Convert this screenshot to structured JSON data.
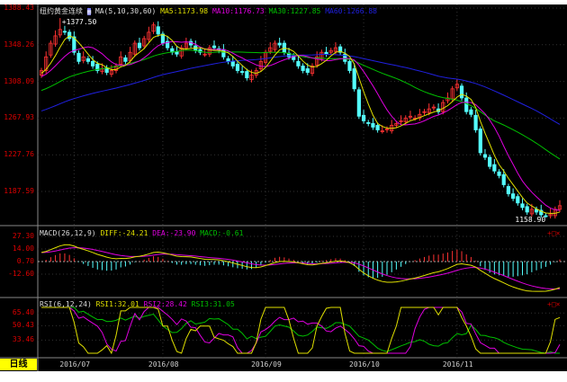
{
  "header": {
    "symbol": "纽约黄金连续",
    "ma_label": "MA(5,10,30,60)",
    "ma5": "MA5:1173.98",
    "ma10": "MA10:1176.73",
    "ma30": "MA30:1227.85",
    "ma60": "MA60:1266.88"
  },
  "macd": {
    "label": "MACD(26,12,9)",
    "diff": "DIFF:-24.21",
    "dea": "DEA:-23.90",
    "macd": "MACD:-0.61"
  },
  "rsi": {
    "label": "RSI(6,12,24)",
    "rsi1": "RSI1:32.01",
    "rsi2": "RSI2:28.42",
    "rsi3": "RSI3:31.05"
  },
  "period": "日线",
  "controls": "+□×",
  "colors": {
    "up": "#ff3232",
    "down": "#54ffff",
    "ma5": "#e0e000",
    "ma10": "#e000e0",
    "ma30": "#00c000",
    "ma60": "#2020e0",
    "axis": "#e00000"
  },
  "chart_data": {
    "type": "candlestick",
    "price_axis": {
      "ticks": [
        "1388.43",
        "1348.26",
        "1308.09",
        "1267.93",
        "1227.76",
        "1187.59"
      ],
      "range": [
        1187.59,
        1388.43
      ]
    },
    "macd_axis": {
      "ticks": [
        "27.30",
        "14.00",
        "0.70",
        "-12.60"
      ]
    },
    "rsi_axis": {
      "ticks": [
        "65.40",
        "50.43",
        "33.46"
      ]
    },
    "x_ticks": [
      "2016/07",
      "2016/08",
      "2016/09",
      "2016/10",
      "2016/11"
    ],
    "annotations": {
      "high": "1377.50",
      "low": "1158.90"
    },
    "closes": [
      1320,
      1335,
      1350,
      1358,
      1365,
      1362,
      1355,
      1340,
      1330,
      1335,
      1330,
      1325,
      1320,
      1322,
      1318,
      1320,
      1325,
      1335,
      1330,
      1340,
      1350,
      1345,
      1355,
      1362,
      1370,
      1360,
      1350,
      1345,
      1340,
      1338,
      1345,
      1350,
      1348,
      1342,
      1340,
      1338,
      1345,
      1345,
      1342,
      1335,
      1330,
      1325,
      1320,
      1318,
      1312,
      1315,
      1320,
      1330,
      1340,
      1345,
      1350,
      1348,
      1340,
      1335,
      1332,
      1325,
      1320,
      1318,
      1325,
      1335,
      1340,
      1338,
      1342,
      1345,
      1340,
      1330,
      1320,
      1300,
      1270,
      1265,
      1262,
      1258,
      1255,
      1254,
      1256,
      1260,
      1262,
      1265,
      1268,
      1270,
      1268,
      1272,
      1275,
      1278,
      1280,
      1275,
      1285,
      1290,
      1300,
      1305,
      1290,
      1275,
      1272,
      1255,
      1230,
      1225,
      1215,
      1210,
      1205,
      1195,
      1185,
      1180,
      1175,
      1170,
      1165,
      1168,
      1165,
      1162,
      1160,
      1163,
      1168,
      1172
    ]
  }
}
